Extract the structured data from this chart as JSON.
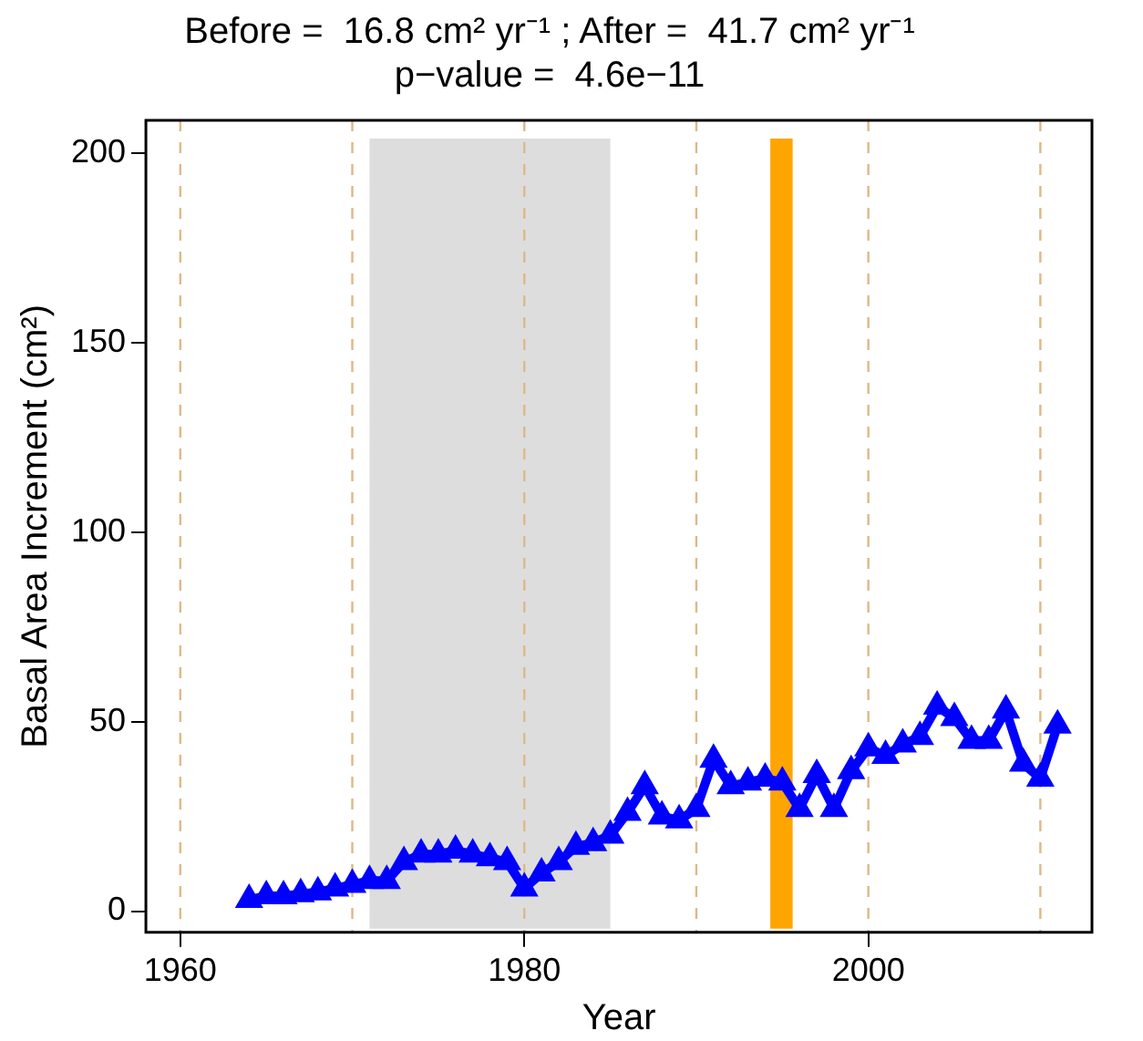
{
  "chart_data": {
    "type": "line",
    "title": "Before =  16.8 cm² yr⁻¹ ; After =  41.7 cm² yr⁻¹",
    "subtitle": "p−value =  4.6e−11",
    "xlabel": "Year",
    "ylabel": "Basal Area Increment (cm²)",
    "x": [
      1964,
      1965,
      1966,
      1967,
      1968,
      1969,
      1970,
      1971,
      1972,
      1973,
      1974,
      1975,
      1976,
      1977,
      1978,
      1979,
      1980,
      1981,
      1982,
      1983,
      1984,
      1985,
      1986,
      1987,
      1988,
      1989,
      1990,
      1991,
      1992,
      1993,
      1994,
      1995,
      1996,
      1997,
      1998,
      1999,
      2000,
      2001,
      2002,
      2003,
      2004,
      2005,
      2006,
      2007,
      2008,
      2009,
      2010,
      2011
    ],
    "series": [
      {
        "color": "#0000ff",
        "values": [
          3,
          4,
          4,
          4.5,
          5,
          6,
          7,
          8,
          8,
          13,
          15,
          15,
          16,
          15,
          14,
          13,
          6,
          10,
          13,
          17,
          18,
          20,
          26,
          33,
          25,
          24,
          27,
          40,
          33,
          34,
          35,
          34,
          27,
          36,
          27,
          37,
          43,
          41,
          44,
          46,
          54,
          51,
          45,
          45,
          53,
          39,
          35,
          49
        ]
      }
    ],
    "xlim": [
      1958,
      2013
    ],
    "xticks": [
      1960,
      1980,
      2000
    ],
    "ylim": [
      -5.6,
      208.7
    ],
    "yticks": [
      0,
      50,
      100,
      150,
      200
    ],
    "bands": [
      {
        "axis": "x",
        "from": 1971,
        "to": 1985,
        "color": "#dddddd"
      },
      {
        "axis": "x",
        "from": 1994.3,
        "to": 1995.6,
        "color": "#ffa500"
      }
    ],
    "ref_lines": [
      {
        "axis": "x",
        "value": 1960,
        "color": "#deb887",
        "line_style": "dashed"
      },
      {
        "axis": "x",
        "value": 1970,
        "color": "#deb887",
        "line_style": "dashed"
      },
      {
        "axis": "x",
        "value": 1980,
        "color": "#deb887",
        "line_style": "dashed"
      },
      {
        "axis": "x",
        "value": 1990,
        "color": "#deb887",
        "line_style": "dashed"
      },
      {
        "axis": "x",
        "value": 2000,
        "color": "#deb887",
        "line_style": "dashed"
      },
      {
        "axis": "x",
        "value": 2010,
        "color": "#deb887",
        "line_style": "dashed"
      }
    ],
    "grid": false,
    "legend": false,
    "marker": "triangle",
    "line_style": "solid"
  }
}
